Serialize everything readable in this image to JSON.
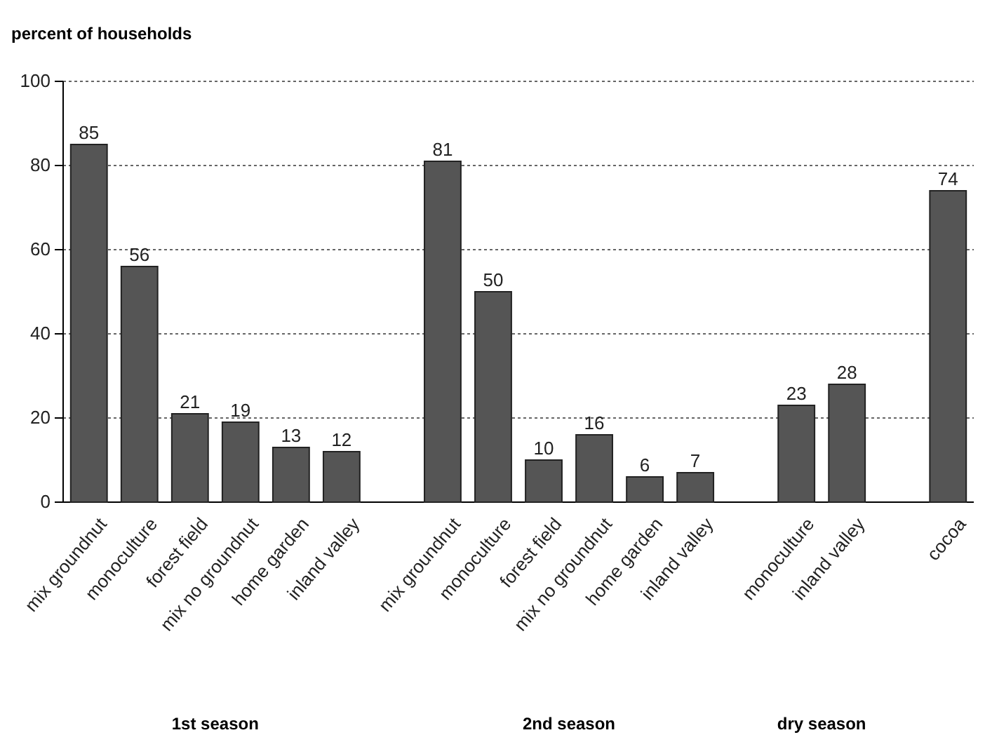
{
  "chart_data": {
    "type": "bar",
    "ylabel": "percent of households",
    "categories": [
      "mix groundnut",
      "monoculture",
      "forest field",
      "mix no groundnut",
      "home garden",
      "inland valley",
      null,
      "mix groundnut",
      "monoculture",
      "forest field",
      "mix no groundnut",
      "home garden",
      "inland valley",
      null,
      "monoculture",
      "inland valley",
      null,
      "cocoa"
    ],
    "values": [
      85,
      56,
      21,
      19,
      13,
      12,
      null,
      81,
      50,
      10,
      16,
      6,
      7,
      null,
      23,
      28,
      null,
      74
    ],
    "color": "#555555",
    "ylim": [
      0,
      100
    ],
    "yticks": [
      0,
      20,
      40,
      60,
      80,
      100
    ],
    "grid": "y",
    "data_labels": true,
    "annotations": [
      "1st season",
      "2nd season",
      "dry season"
    ]
  }
}
